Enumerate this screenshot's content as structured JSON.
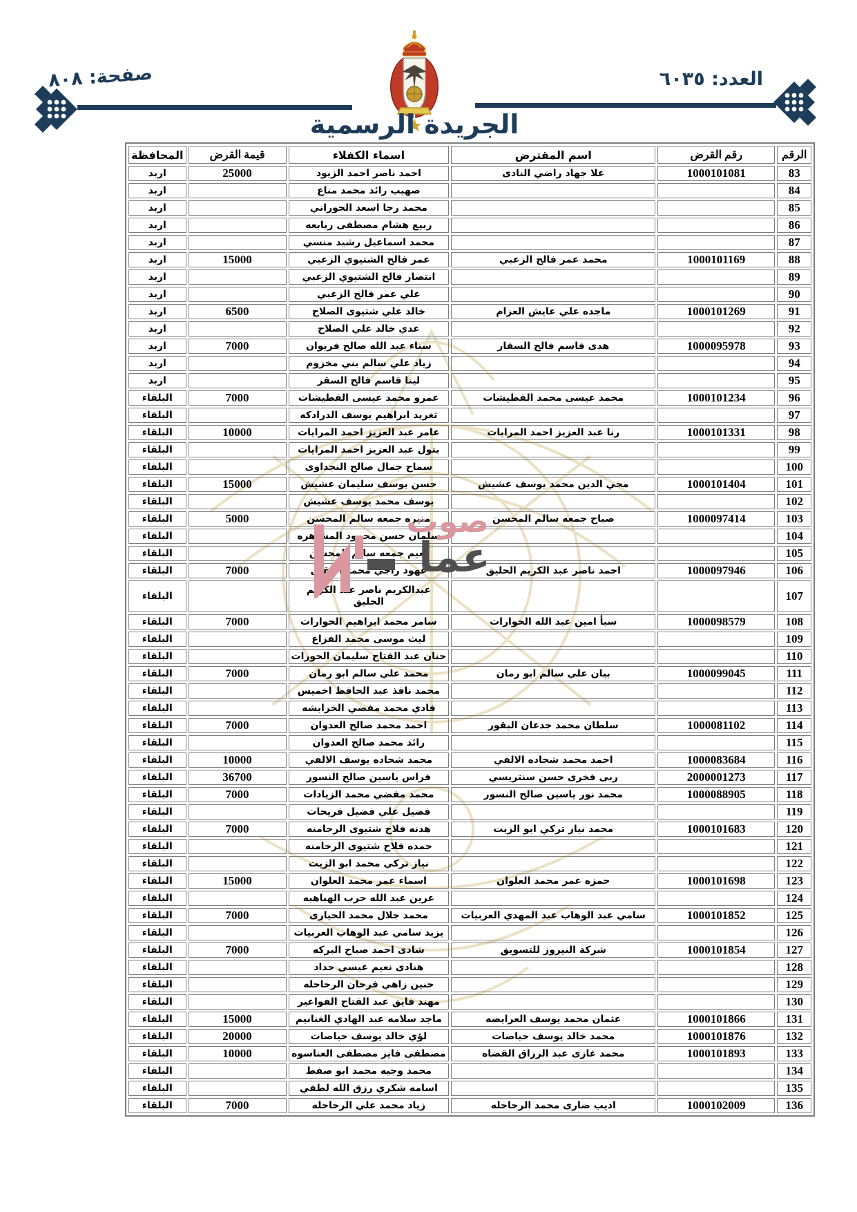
{
  "header": {
    "issue_label": "العدد: ٦٠٣٥",
    "page_label": "صفحة: ٨٠٨",
    "gazette_title": "الجريدة الرسمية",
    "emblem_icon": "jordan-coat-of-arms"
  },
  "watermark": {
    "line1": "صوت",
    "line2": "عما",
    "pink": "#db96a0",
    "gray": "#4f4f4f"
  },
  "colors": {
    "navy": "#1d3c5a",
    "table_border": "#7e7e7e",
    "crown_red": "#bf3a27",
    "gold": "#d9a123",
    "paper_watermark": "#ece1c4"
  },
  "table": {
    "headers": [
      "الرقم",
      "رقم القرض",
      "اسم المقترض",
      "اسماء الكفلاء",
      "قيمة القرض",
      "المحافظة"
    ],
    "rows": [
      {
        "n": "83",
        "loan": "1000101081",
        "borrower": "علا جهاد راضي النادى",
        "guarantor": "احمد ناصر احمد الزيود",
        "amount": "25000",
        "gov": "اربد"
      },
      {
        "n": "84",
        "loan": "",
        "borrower": "",
        "guarantor": "صهيب رائد محمد مناع",
        "amount": "",
        "gov": "اربد"
      },
      {
        "n": "85",
        "loan": "",
        "borrower": "",
        "guarantor": "محمد رجا اسعد الحوراني",
        "amount": "",
        "gov": "اربد"
      },
      {
        "n": "86",
        "loan": "",
        "borrower": "",
        "guarantor": "ربيع هشام مصطفى ربابعه",
        "amount": "",
        "gov": "اربد"
      },
      {
        "n": "87",
        "loan": "",
        "borrower": "",
        "guarantor": "محمد اسماعيل رشيد منسي",
        "amount": "",
        "gov": "اربد"
      },
      {
        "n": "88",
        "loan": "1000101169",
        "borrower": "محمد عمر فالح الزعبي",
        "guarantor": "عمر فالح الشتيوي الزعبي",
        "amount": "15000",
        "gov": "اربد"
      },
      {
        "n": "89",
        "loan": "",
        "borrower": "",
        "guarantor": "انتصار فالح الشتيوي الزعبي",
        "amount": "",
        "gov": "اربد"
      },
      {
        "n": "90",
        "loan": "",
        "borrower": "",
        "guarantor": "علي عمر فالح الزعبي",
        "amount": "",
        "gov": "اربد"
      },
      {
        "n": "91",
        "loan": "1000101269",
        "borrower": "ماجده علي عايش العزام",
        "guarantor": "خالد علي شتيوى الصلاح",
        "amount": "6500",
        "gov": "اربد"
      },
      {
        "n": "92",
        "loan": "",
        "borrower": "",
        "guarantor": "عدي خالد علي الصلاح",
        "amount": "",
        "gov": "اربد"
      },
      {
        "n": "93",
        "loan": "1000095978",
        "borrower": "هدى قاسم فالح السقار",
        "guarantor": "سناء عبد الله صالح فريوان",
        "amount": "7000",
        "gov": "اربد"
      },
      {
        "n": "94",
        "loan": "",
        "borrower": "",
        "guarantor": "زياد علي سالم بني مخزوم",
        "amount": "",
        "gov": "اربد"
      },
      {
        "n": "95",
        "loan": "",
        "borrower": "",
        "guarantor": "لينا قاسم فالح السقر",
        "amount": "",
        "gov": "اربد"
      },
      {
        "n": "96",
        "loan": "1000101234",
        "borrower": "محمد عيسى محمد القطيشات",
        "guarantor": "عمرو محمد عيسى القطيشات",
        "amount": "7000",
        "gov": "البلقاء"
      },
      {
        "n": "97",
        "loan": "",
        "borrower": "",
        "guarantor": "تغريد ابراهيم يوسف الدرادكه",
        "amount": "",
        "gov": "البلقاء"
      },
      {
        "n": "98",
        "loan": "1000101331",
        "borrower": "رنا عبد العزيز احمد المرايات",
        "guarantor": "عامر عبد العزيز احمد المرايات",
        "amount": "10000",
        "gov": "البلقاء"
      },
      {
        "n": "99",
        "loan": "",
        "borrower": "",
        "guarantor": "بتول عبد العزيز احمد المرايات",
        "amount": "",
        "gov": "البلقاء"
      },
      {
        "n": "100",
        "loan": "",
        "borrower": "",
        "guarantor": "سماح جمال صالح النجداوى",
        "amount": "",
        "gov": "البلقاء"
      },
      {
        "n": "101",
        "loan": "1000101404",
        "borrower": "محي الدين محمد يوسف عشيش",
        "guarantor": "حسن يوسف سليمان عشيش",
        "amount": "15000",
        "gov": "البلقاء"
      },
      {
        "n": "102",
        "loan": "",
        "borrower": "",
        "guarantor": "يوسف محمد يوسف عشيش",
        "amount": "",
        "gov": "البلقاء"
      },
      {
        "n": "103",
        "loan": "1000097414",
        "borrower": "صباح جمعه سالم المحسن",
        "guarantor": "منيره جمعه سالم المحسن",
        "amount": "5000",
        "gov": "البلقاء"
      },
      {
        "n": "104",
        "loan": "",
        "borrower": "",
        "guarantor": "سلمان حسن محمود المشاهره",
        "amount": "",
        "gov": "البلقاء"
      },
      {
        "n": "105",
        "loan": "",
        "borrower": "",
        "guarantor": "نعيم جمعه سالم المحسن",
        "amount": "",
        "gov": "البلقاء"
      },
      {
        "n": "106",
        "loan": "1000097946",
        "borrower": "احمد ناصر عبد الكريم الحليق",
        "guarantor": "عهود راجي محمد العقيل",
        "amount": "7000",
        "gov": "البلقاء"
      },
      {
        "n": "107",
        "loan": "",
        "borrower": "",
        "guarantor": "عبدالكريم ناصر عبد الكريم الحليق",
        "amount": "",
        "gov": "البلقاء",
        "tall": true
      },
      {
        "n": "108",
        "loan": "1000098579",
        "borrower": "سبأ امين عبد الله الحوارات",
        "guarantor": "سامر محمد ابراهيم الحوارات",
        "amount": "7000",
        "gov": "البلقاء"
      },
      {
        "n": "109",
        "loan": "",
        "borrower": "",
        "guarantor": "ليث موسى محمد الفزاع",
        "amount": "",
        "gov": "البلقاء"
      },
      {
        "n": "110",
        "loan": "",
        "borrower": "",
        "guarantor": "حنان عبد الفتاح سليمان الحورات",
        "amount": "",
        "gov": "البلقاء"
      },
      {
        "n": "111",
        "loan": "1000099045",
        "borrower": "بيان علي سالم ابو رمان",
        "guarantor": "محمد علي سالم ابو رمان",
        "amount": "7000",
        "gov": "البلقاء"
      },
      {
        "n": "112",
        "loan": "",
        "borrower": "",
        "guarantor": "محمد نافذ عبد الحافظ اخميس",
        "amount": "",
        "gov": "البلقاء"
      },
      {
        "n": "113",
        "loan": "",
        "borrower": "",
        "guarantor": "فادي محمد مفضي الخرابشه",
        "amount": "",
        "gov": "البلقاء"
      },
      {
        "n": "114",
        "loan": "1000081102",
        "borrower": "سلطان محمد جدعان البقور",
        "guarantor": "احمد محمد صالح العدوان",
        "amount": "7000",
        "gov": "البلقاء"
      },
      {
        "n": "115",
        "loan": "",
        "borrower": "",
        "guarantor": "رائد محمد صالح العدوان",
        "amount": "",
        "gov": "البلقاء"
      },
      {
        "n": "116",
        "loan": "1000083684",
        "borrower": "احمد محمد شحاده الالفي",
        "guarantor": "محمد شحاده يوسف الالفي",
        "amount": "10000",
        "gov": "البلقاء"
      },
      {
        "n": "117",
        "loan": "2000001273",
        "borrower": "ربى فخرى حسن سنتريسي",
        "guarantor": "فراس ياسين صالح النسور",
        "amount": "36700",
        "gov": "البلقاء"
      },
      {
        "n": "118",
        "loan": "1000088905",
        "borrower": "محمد نور ياسين صالح النسور",
        "guarantor": "محمد مفضي محمد الزيادات",
        "amount": "7000",
        "gov": "البلقاء"
      },
      {
        "n": "119",
        "loan": "",
        "borrower": "",
        "guarantor": "فضيل علي فضيل فريحات",
        "amount": "",
        "gov": "البلقاء"
      },
      {
        "n": "120",
        "loan": "1000101683",
        "borrower": "محمد نياز تركي ابو الزيت",
        "guarantor": "هدنه فلاح شتيوى الرحامنه",
        "amount": "7000",
        "gov": "البلقاء"
      },
      {
        "n": "121",
        "loan": "",
        "borrower": "",
        "guarantor": "حمده فلاح شتيوى الرحامنه",
        "amount": "",
        "gov": "البلقاء"
      },
      {
        "n": "122",
        "loan": "",
        "borrower": "",
        "guarantor": "نياز تركي محمد ابو الزيت",
        "amount": "",
        "gov": "البلقاء"
      },
      {
        "n": "123",
        "loan": "1000101698",
        "borrower": "حمزه عمر محمد العلوان",
        "guarantor": "اسماء عمر محمد العلوان",
        "amount": "15000",
        "gov": "البلقاء"
      },
      {
        "n": "124",
        "loan": "",
        "borrower": "",
        "guarantor": "عرين عبد الله حرب الهباهبه",
        "amount": "",
        "gov": "البلقاء"
      },
      {
        "n": "125",
        "loan": "1000101852",
        "borrower": "سامي عبد الوهاب عبد المهدي العربيات",
        "guarantor": "محمد جلال محمد الحيارى",
        "amount": "7000",
        "gov": "البلقاء"
      },
      {
        "n": "126",
        "loan": "",
        "borrower": "",
        "guarantor": "يزيد سامي عبد الوهاب العربيات",
        "amount": "",
        "gov": "البلقاء"
      },
      {
        "n": "127",
        "loan": "1000101854",
        "borrower": "شركة النيروز للتسويق",
        "guarantor": "شادى احمد صباح البركه",
        "amount": "7000",
        "gov": "البلقاء"
      },
      {
        "n": "128",
        "loan": "",
        "borrower": "",
        "guarantor": "هنادى نعيم عيسى حداد",
        "amount": "",
        "gov": "البلقاء"
      },
      {
        "n": "129",
        "loan": "",
        "borrower": "",
        "guarantor": "حنين زاهي فرحان الرحاحله",
        "amount": "",
        "gov": "البلقاء"
      },
      {
        "n": "130",
        "loan": "",
        "borrower": "",
        "guarantor": "مهند فايق عبد الفتاح الفواعير",
        "amount": "",
        "gov": "البلقاء"
      },
      {
        "n": "131",
        "loan": "1000101866",
        "borrower": "عثمان محمد يوسف العرايضه",
        "guarantor": "ماجد سلامه عبد الهادي الغنانيم",
        "amount": "15000",
        "gov": "البلقاء"
      },
      {
        "n": "132",
        "loan": "1000101876",
        "borrower": "محمد خالد يوسف حياصات",
        "guarantor": "لؤي خالد يوسف حياصات",
        "amount": "20000",
        "gov": "البلقاء"
      },
      {
        "n": "133",
        "loan": "1000101893",
        "borrower": "محمد غازى عبد الرزاق القضاه",
        "guarantor": "مصطفى فايز مصطفى العناسوه",
        "amount": "10000",
        "gov": "البلقاء"
      },
      {
        "n": "134",
        "loan": "",
        "borrower": "",
        "guarantor": "محمد وجيه محمد ابو صفط",
        "amount": "",
        "gov": "البلقاء"
      },
      {
        "n": "135",
        "loan": "",
        "borrower": "",
        "guarantor": "اسامه شكري رزق الله لطفي",
        "amount": "",
        "gov": "البلقاء"
      },
      {
        "n": "136",
        "loan": "1000102009",
        "borrower": "اديب ضارى محمد الرحاحله",
        "guarantor": "زياد محمد علي الرحاحله",
        "amount": "7000",
        "gov": "البلقاء"
      }
    ]
  }
}
